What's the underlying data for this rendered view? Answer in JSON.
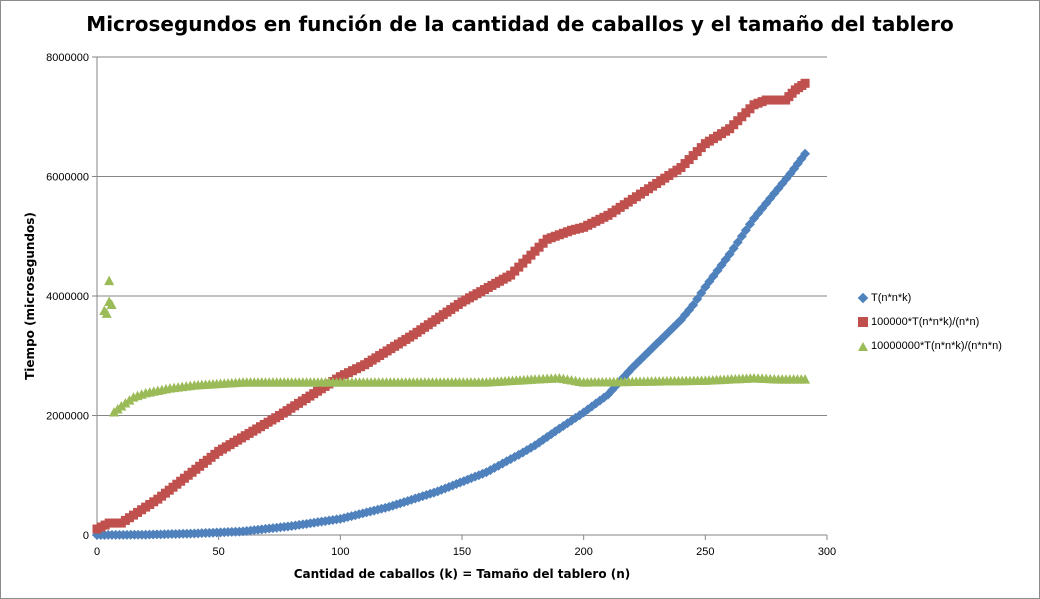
{
  "chart_data": {
    "type": "scatter",
    "title": "Microsegundos en función de la cantidad de caballos y el tamaño del tablero",
    "xlabel": "Cantidad de caballos (k) = Tamaño del tablero (n)",
    "ylabel": "Tiempo (microsegundos)",
    "xlim": [
      0,
      300
    ],
    "ylim": [
      0,
      8000000
    ],
    "x_ticks": [
      "0",
      "50",
      "100",
      "150",
      "200",
      "250",
      "300"
    ],
    "y_ticks": [
      "0",
      "2000000",
      "4000000",
      "6000000",
      "8000000"
    ],
    "grid": "horizontal",
    "legend_position": "right",
    "series": [
      {
        "name": "T(n*n*k)",
        "color": "#4F81BD",
        "marker": "diamond",
        "points": [
          [
            0,
            0
          ],
          [
            20,
            5000
          ],
          [
            40,
            25000
          ],
          [
            60,
            60000
          ],
          [
            80,
            150000
          ],
          [
            100,
            270000
          ],
          [
            120,
            470000
          ],
          [
            140,
            730000
          ],
          [
            160,
            1050000
          ],
          [
            175,
            1380000
          ],
          [
            180,
            1500000
          ],
          [
            190,
            1780000
          ],
          [
            200,
            2050000
          ],
          [
            210,
            2350000
          ],
          [
            220,
            2800000
          ],
          [
            230,
            3200000
          ],
          [
            240,
            3600000
          ],
          [
            245,
            3850000
          ],
          [
            250,
            4150000
          ],
          [
            260,
            4700000
          ],
          [
            270,
            5300000
          ],
          [
            280,
            5800000
          ],
          [
            285,
            6050000
          ],
          [
            291,
            6380000
          ]
        ]
      },
      {
        "name": "100000*T(n*n*k)/(n*n)",
        "color": "#C0504D",
        "marker": "square",
        "points": [
          [
            0,
            100000
          ],
          [
            5,
            200000
          ],
          [
            10,
            200000
          ],
          [
            25,
            600000
          ],
          [
            50,
            1400000
          ],
          [
            75,
            2000000
          ],
          [
            100,
            2650000
          ],
          [
            110,
            2850000
          ],
          [
            130,
            3350000
          ],
          [
            150,
            3900000
          ],
          [
            170,
            4350000
          ],
          [
            175,
            4550000
          ],
          [
            185,
            4950000
          ],
          [
            195,
            5100000
          ],
          [
            200,
            5150000
          ],
          [
            210,
            5350000
          ],
          [
            225,
            5750000
          ],
          [
            240,
            6150000
          ],
          [
            250,
            6550000
          ],
          [
            260,
            6800000
          ],
          [
            265,
            7000000
          ],
          [
            270,
            7200000
          ],
          [
            275,
            7280000
          ],
          [
            283,
            7280000
          ],
          [
            287,
            7450000
          ],
          [
            291,
            7560000
          ]
        ]
      },
      {
        "name": "10000000*T(n*n*k)/(n*n*n)",
        "color": "#9BBB59",
        "marker": "triangle",
        "points": [
          [
            3,
            3750000
          ],
          [
            4,
            3700000
          ],
          [
            5,
            3900000
          ],
          [
            5,
            4250000
          ],
          [
            6,
            3850000
          ],
          [
            7,
            2050000
          ],
          [
            10,
            2150000
          ],
          [
            15,
            2300000
          ],
          [
            20,
            2370000
          ],
          [
            30,
            2450000
          ],
          [
            40,
            2500000
          ],
          [
            60,
            2550000
          ],
          [
            80,
            2550000
          ],
          [
            100,
            2550000
          ],
          [
            130,
            2550000
          ],
          [
            160,
            2550000
          ],
          [
            180,
            2600000
          ],
          [
            190,
            2620000
          ],
          [
            200,
            2550000
          ],
          [
            220,
            2560000
          ],
          [
            250,
            2580000
          ],
          [
            270,
            2620000
          ],
          [
            280,
            2600000
          ],
          [
            291,
            2600000
          ]
        ]
      }
    ]
  }
}
